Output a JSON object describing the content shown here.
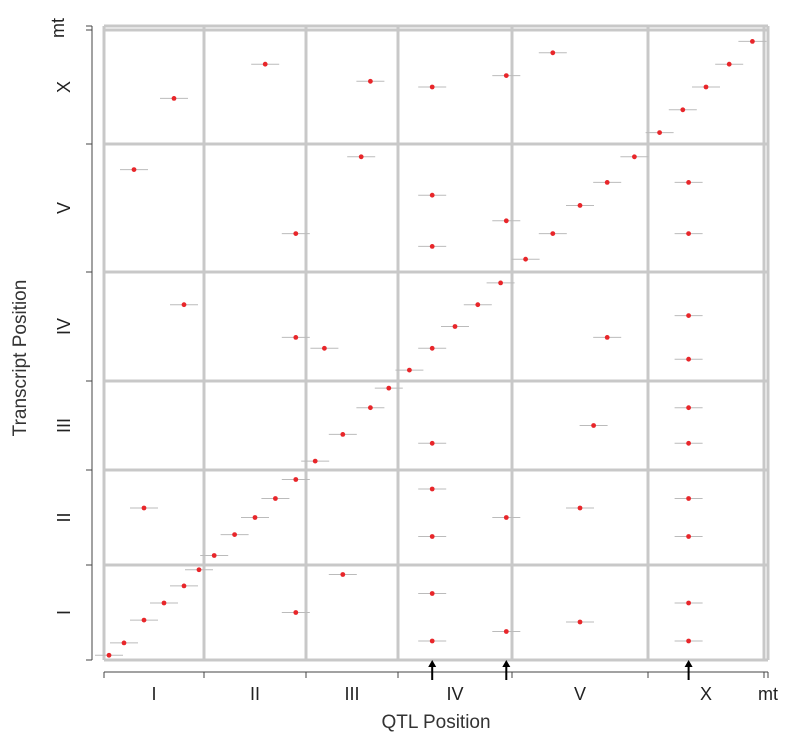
{
  "chart_data": {
    "type": "scatter",
    "title": "",
    "xlabel": "QTL Position",
    "ylabel": "Transcript Position",
    "x_chromosomes": [
      "I",
      "II",
      "III",
      "IV",
      "V",
      "X",
      "mt"
    ],
    "y_chromosomes": [
      "I",
      "II",
      "III",
      "IV",
      "V",
      "X",
      "mt"
    ],
    "grid": true,
    "point_color": "#e8262a",
    "grid_color": "#c8c8c8",
    "interval_color": "#bbbbbb",
    "hotspot_arrows": [
      {
        "chromosome": "IV",
        "position": 0.3
      },
      {
        "chromosome": "IV",
        "position": 0.95
      },
      {
        "chromosome": "X",
        "position": 0.35
      }
    ],
    "series": [
      {
        "points": [
          {
            "qtl_chr": "I",
            "qtl_pos": 0.05,
            "tx_chr": "I",
            "tx_pos": 0.05
          },
          {
            "qtl_chr": "I",
            "qtl_pos": 0.2,
            "tx_chr": "I",
            "tx_pos": 0.18
          },
          {
            "qtl_chr": "I",
            "qtl_pos": 0.4,
            "tx_chr": "I",
            "tx_pos": 0.42
          },
          {
            "qtl_chr": "I",
            "qtl_pos": 0.6,
            "tx_chr": "I",
            "tx_pos": 0.6
          },
          {
            "qtl_chr": "I",
            "qtl_pos": 0.8,
            "tx_chr": "I",
            "tx_pos": 0.78
          },
          {
            "qtl_chr": "I",
            "qtl_pos": 0.95,
            "tx_chr": "I",
            "tx_pos": 0.95
          },
          {
            "qtl_chr": "II",
            "qtl_pos": 0.1,
            "tx_chr": "II",
            "tx_pos": 0.1
          },
          {
            "qtl_chr": "II",
            "qtl_pos": 0.3,
            "tx_chr": "II",
            "tx_pos": 0.32
          },
          {
            "qtl_chr": "II",
            "qtl_pos": 0.5,
            "tx_chr": "II",
            "tx_pos": 0.5
          },
          {
            "qtl_chr": "II",
            "qtl_pos": 0.7,
            "tx_chr": "II",
            "tx_pos": 0.7
          },
          {
            "qtl_chr": "II",
            "qtl_pos": 0.9,
            "tx_chr": "II",
            "tx_pos": 0.9
          },
          {
            "qtl_chr": "III",
            "qtl_pos": 0.1,
            "tx_chr": "III",
            "tx_pos": 0.1
          },
          {
            "qtl_chr": "III",
            "qtl_pos": 0.4,
            "tx_chr": "III",
            "tx_pos": 0.4
          },
          {
            "qtl_chr": "III",
            "qtl_pos": 0.7,
            "tx_chr": "III",
            "tx_pos": 0.7
          },
          {
            "qtl_chr": "III",
            "qtl_pos": 0.9,
            "tx_chr": "III",
            "tx_pos": 0.92
          },
          {
            "qtl_chr": "IV",
            "qtl_pos": 0.1,
            "tx_chr": "IV",
            "tx_pos": 0.1
          },
          {
            "qtl_chr": "IV",
            "qtl_pos": 0.3,
            "tx_chr": "IV",
            "tx_pos": 0.3
          },
          {
            "qtl_chr": "IV",
            "qtl_pos": 0.5,
            "tx_chr": "IV",
            "tx_pos": 0.5
          },
          {
            "qtl_chr": "IV",
            "qtl_pos": 0.7,
            "tx_chr": "IV",
            "tx_pos": 0.7
          },
          {
            "qtl_chr": "IV",
            "qtl_pos": 0.9,
            "tx_chr": "IV",
            "tx_pos": 0.9
          },
          {
            "qtl_chr": "V",
            "qtl_pos": 0.1,
            "tx_chr": "V",
            "tx_pos": 0.1
          },
          {
            "qtl_chr": "V",
            "qtl_pos": 0.3,
            "tx_chr": "V",
            "tx_pos": 0.3
          },
          {
            "qtl_chr": "V",
            "qtl_pos": 0.5,
            "tx_chr": "V",
            "tx_pos": 0.52
          },
          {
            "qtl_chr": "V",
            "qtl_pos": 0.7,
            "tx_chr": "V",
            "tx_pos": 0.7
          },
          {
            "qtl_chr": "V",
            "qtl_pos": 0.9,
            "tx_chr": "V",
            "tx_pos": 0.9
          },
          {
            "qtl_chr": "X",
            "qtl_pos": 0.1,
            "tx_chr": "X",
            "tx_pos": 0.1
          },
          {
            "qtl_chr": "X",
            "qtl_pos": 0.3,
            "tx_chr": "X",
            "tx_pos": 0.3
          },
          {
            "qtl_chr": "X",
            "qtl_pos": 0.5,
            "tx_chr": "X",
            "tx_pos": 0.5
          },
          {
            "qtl_chr": "X",
            "qtl_pos": 0.7,
            "tx_chr": "X",
            "tx_pos": 0.7
          },
          {
            "qtl_chr": "X",
            "qtl_pos": 0.9,
            "tx_chr": "X",
            "tx_pos": 0.9
          },
          {
            "qtl_chr": "IV",
            "qtl_pos": 0.3,
            "tx_chr": "I",
            "tx_pos": 0.2
          },
          {
            "qtl_chr": "IV",
            "qtl_pos": 0.3,
            "tx_chr": "I",
            "tx_pos": 0.7
          },
          {
            "qtl_chr": "IV",
            "qtl_pos": 0.3,
            "tx_chr": "II",
            "tx_pos": 0.3
          },
          {
            "qtl_chr": "IV",
            "qtl_pos": 0.3,
            "tx_chr": "II",
            "tx_pos": 0.8
          },
          {
            "qtl_chr": "IV",
            "qtl_pos": 0.3,
            "tx_chr": "III",
            "tx_pos": 0.3
          },
          {
            "qtl_chr": "IV",
            "qtl_pos": 0.3,
            "tx_chr": "V",
            "tx_pos": 0.2
          },
          {
            "qtl_chr": "IV",
            "qtl_pos": 0.3,
            "tx_chr": "V",
            "tx_pos": 0.6
          },
          {
            "qtl_chr": "IV",
            "qtl_pos": 0.3,
            "tx_chr": "X",
            "tx_pos": 0.5
          },
          {
            "qtl_chr": "IV",
            "qtl_pos": 0.95,
            "tx_chr": "I",
            "tx_pos": 0.3
          },
          {
            "qtl_chr": "IV",
            "qtl_pos": 0.95,
            "tx_chr": "II",
            "tx_pos": 0.5
          },
          {
            "qtl_chr": "IV",
            "qtl_pos": 0.95,
            "tx_chr": "V",
            "tx_pos": 0.4
          },
          {
            "qtl_chr": "IV",
            "qtl_pos": 0.95,
            "tx_chr": "X",
            "tx_pos": 0.6
          },
          {
            "qtl_chr": "X",
            "qtl_pos": 0.35,
            "tx_chr": "I",
            "tx_pos": 0.2
          },
          {
            "qtl_chr": "X",
            "qtl_pos": 0.35,
            "tx_chr": "I",
            "tx_pos": 0.6
          },
          {
            "qtl_chr": "X",
            "qtl_pos": 0.35,
            "tx_chr": "II",
            "tx_pos": 0.3
          },
          {
            "qtl_chr": "X",
            "qtl_pos": 0.35,
            "tx_chr": "II",
            "tx_pos": 0.7
          },
          {
            "qtl_chr": "X",
            "qtl_pos": 0.35,
            "tx_chr": "III",
            "tx_pos": 0.3
          },
          {
            "qtl_chr": "X",
            "qtl_pos": 0.35,
            "tx_chr": "III",
            "tx_pos": 0.7
          },
          {
            "qtl_chr": "X",
            "qtl_pos": 0.35,
            "tx_chr": "IV",
            "tx_pos": 0.2
          },
          {
            "qtl_chr": "X",
            "qtl_pos": 0.35,
            "tx_chr": "IV",
            "tx_pos": 0.6
          },
          {
            "qtl_chr": "X",
            "qtl_pos": 0.35,
            "tx_chr": "V",
            "tx_pos": 0.3
          },
          {
            "qtl_chr": "X",
            "qtl_pos": 0.35,
            "tx_chr": "V",
            "tx_pos": 0.7
          },
          {
            "qtl_chr": "I",
            "qtl_pos": 0.3,
            "tx_chr": "V",
            "tx_pos": 0.8
          },
          {
            "qtl_chr": "I",
            "qtl_pos": 0.4,
            "tx_chr": "II",
            "tx_pos": 0.6
          },
          {
            "qtl_chr": "I",
            "qtl_pos": 0.8,
            "tx_chr": "IV",
            "tx_pos": 0.7
          },
          {
            "qtl_chr": "I",
            "qtl_pos": 0.7,
            "tx_chr": "X",
            "tx_pos": 0.4
          },
          {
            "qtl_chr": "II",
            "qtl_pos": 0.9,
            "tx_chr": "IV",
            "tx_pos": 0.4
          },
          {
            "qtl_chr": "II",
            "qtl_pos": 0.9,
            "tx_chr": "V",
            "tx_pos": 0.3
          },
          {
            "qtl_chr": "II",
            "qtl_pos": 0.6,
            "tx_chr": "X",
            "tx_pos": 0.7
          },
          {
            "qtl_chr": "II",
            "qtl_pos": 0.9,
            "tx_chr": "I",
            "tx_pos": 0.5
          },
          {
            "qtl_chr": "III",
            "qtl_pos": 0.2,
            "tx_chr": "IV",
            "tx_pos": 0.3
          },
          {
            "qtl_chr": "III",
            "qtl_pos": 0.6,
            "tx_chr": "V",
            "tx_pos": 0.9
          },
          {
            "qtl_chr": "III",
            "qtl_pos": 0.7,
            "tx_chr": "X",
            "tx_pos": 0.55
          },
          {
            "qtl_chr": "III",
            "qtl_pos": 0.4,
            "tx_chr": "I",
            "tx_pos": 0.9
          },
          {
            "qtl_chr": "V",
            "qtl_pos": 0.5,
            "tx_chr": "I",
            "tx_pos": 0.4
          },
          {
            "qtl_chr": "V",
            "qtl_pos": 0.5,
            "tx_chr": "II",
            "tx_pos": 0.6
          },
          {
            "qtl_chr": "V",
            "qtl_pos": 0.6,
            "tx_chr": "III",
            "tx_pos": 0.5
          },
          {
            "qtl_chr": "V",
            "qtl_pos": 0.7,
            "tx_chr": "IV",
            "tx_pos": 0.4
          },
          {
            "qtl_chr": "V",
            "qtl_pos": 0.3,
            "tx_chr": "X",
            "tx_pos": 0.8
          }
        ]
      }
    ]
  }
}
